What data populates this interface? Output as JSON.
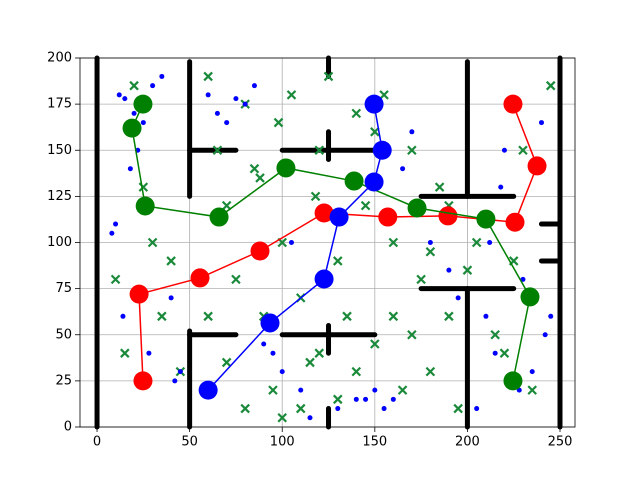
{
  "chart_data": {
    "type": "line",
    "xlim": [
      -9.2,
      258.1
    ],
    "ylim": [
      0,
      200
    ],
    "xticks": [
      0,
      50,
      100,
      150,
      200,
      250
    ],
    "yticks": [
      0,
      25,
      50,
      75,
      100,
      125,
      150,
      175,
      200
    ],
    "grid": true,
    "walls": [
      {
        "x": [
          0,
          0
        ],
        "y": [
          0,
          200
        ]
      },
      {
        "x": [
          250,
          250
        ],
        "y": [
          0,
          200
        ]
      },
      {
        "x": [
          50,
          50
        ],
        "y": [
          125,
          198
        ]
      },
      {
        "x": [
          50,
          50
        ],
        "y": [
          0,
          52
        ]
      },
      {
        "x": [
          50,
          75
        ],
        "y": [
          150,
          150
        ]
      },
      {
        "x": [
          50,
          75
        ],
        "y": [
          50,
          50
        ]
      },
      {
        "x": [
          125,
          125
        ],
        "y": [
          190,
          200
        ]
      },
      {
        "x": [
          100,
          150
        ],
        "y": [
          150,
          150
        ]
      },
      {
        "x": [
          125,
          125
        ],
        "y": [
          145,
          160
        ]
      },
      {
        "x": [
          100,
          150
        ],
        "y": [
          50,
          50
        ]
      },
      {
        "x": [
          125,
          125
        ],
        "y": [
          40,
          55
        ]
      },
      {
        "x": [
          125,
          125
        ],
        "y": [
          0,
          10
        ]
      },
      {
        "x": [
          200,
          200
        ],
        "y": [
          125,
          198
        ]
      },
      {
        "x": [
          175,
          225
        ],
        "y": [
          125,
          125
        ]
      },
      {
        "x": [
          200,
          200
        ],
        "y": [
          0,
          75
        ]
      },
      {
        "x": [
          175,
          225
        ],
        "y": [
          75,
          75
        ]
      },
      {
        "x": [
          240,
          250
        ],
        "y": [
          110,
          110
        ]
      },
      {
        "x": [
          240,
          250
        ],
        "y": [
          90,
          90
        ]
      }
    ],
    "points": {
      "color": "#0000ff",
      "x": [
        12,
        15,
        20,
        25,
        30,
        35,
        22,
        18,
        10,
        8,
        14,
        28,
        40,
        45,
        42,
        60,
        65,
        70,
        75,
        80,
        85,
        90,
        95,
        100,
        105,
        110,
        115,
        130,
        140,
        150,
        160,
        165,
        170,
        180,
        190,
        195,
        205,
        210,
        215,
        220,
        230,
        235,
        240,
        245,
        212,
        218,
        228,
        242,
        155,
        145
      ],
      "y": [
        180,
        178,
        170,
        165,
        185,
        190,
        150,
        140,
        110,
        105,
        60,
        40,
        70,
        30,
        25,
        180,
        170,
        165,
        178,
        175,
        185,
        45,
        40,
        30,
        100,
        20,
        5,
        10,
        15,
        20,
        15,
        140,
        160,
        100,
        85,
        70,
        10,
        60,
        40,
        150,
        80,
        30,
        165,
        60,
        100,
        130,
        20,
        50,
        10,
        15
      ]
    },
    "obstacles": {
      "color": "#1a8a3a",
      "x": [
        20,
        25,
        30,
        35,
        10,
        15,
        40,
        45,
        60,
        65,
        70,
        75,
        80,
        85,
        90,
        95,
        100,
        105,
        110,
        115,
        120,
        125,
        130,
        135,
        140,
        145,
        150,
        155,
        160,
        165,
        170,
        175,
        180,
        185,
        190,
        195,
        200,
        205,
        215,
        220,
        225,
        230,
        235,
        245,
        60,
        70,
        80,
        100,
        120,
        140,
        160,
        180,
        110,
        130,
        150,
        170,
        190,
        88,
        98,
        118
      ],
      "y": [
        185,
        130,
        100,
        60,
        80,
        40,
        90,
        30,
        190,
        150,
        120,
        80,
        175,
        140,
        60,
        20,
        100,
        180,
        70,
        35,
        150,
        190,
        90,
        60,
        170,
        120,
        45,
        180,
        100,
        20,
        150,
        80,
        30,
        130,
        60,
        10,
        85,
        100,
        50,
        40,
        90,
        150,
        20,
        185,
        60,
        35,
        10,
        5,
        40,
        30,
        60,
        95,
        10,
        15,
        160,
        50,
        120,
        135,
        165,
        125
      ]
    },
    "series": [
      {
        "color": "#ff0000",
        "x": [
          24.8,
          22.7,
          55.6,
          88,
          122.6,
          157,
          189.5,
          225.7,
          237.6,
          224.6
        ],
        "values": [
          25,
          72,
          80.8,
          95.4,
          116,
          113.8,
          114.4,
          111,
          141.5,
          175
        ]
      },
      {
        "color": "#008000",
        "x": [
          224.6,
          233.8,
          210,
          172.8,
          138.8,
          102,
          65.9,
          26,
          18.9,
          24.8
        ],
        "values": [
          25,
          70.5,
          112.7,
          118.7,
          133.3,
          140.4,
          113.8,
          119.8,
          162,
          175
        ]
      },
      {
        "color": "#0000ff",
        "x": [
          60,
          93.4,
          122.6,
          130.7,
          149.6,
          154,
          149.6
        ],
        "values": [
          20,
          56.4,
          80.2,
          113.8,
          132.8,
          150,
          175
        ]
      }
    ]
  }
}
